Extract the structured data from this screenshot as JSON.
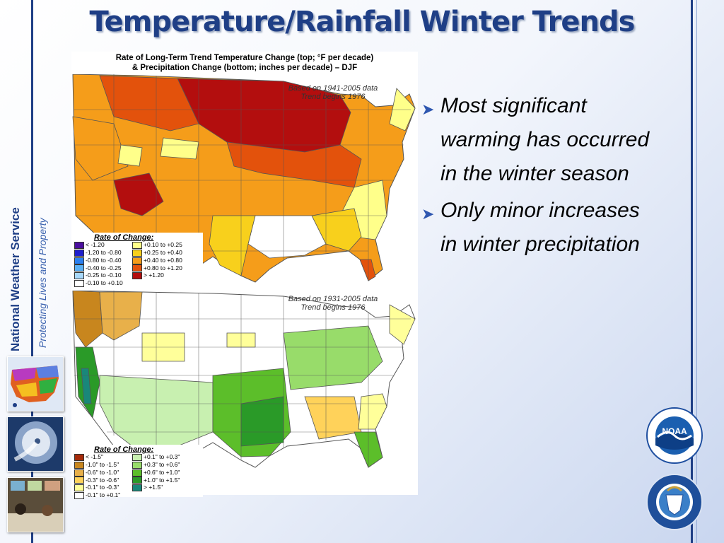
{
  "slide": {
    "title": "Temperature/Rainfall Winter Trends"
  },
  "sidebar": {
    "org": "National Weather Service",
    "tagline": "Protecting Lives and Property"
  },
  "figure": {
    "title_line1": "Rate of Long-Term Trend Temperature Change (top; °F per decade)",
    "title_line2": "&  Precipitation Change (bottom; inches per decade) – DJF",
    "top_note1": "Based on 1941-2005 data",
    "top_note2": "Trend begins 1976",
    "bottom_note1": "Based on 1931-2005 data",
    "bottom_note2": "Trend begins 1976",
    "temp_legend": {
      "title": "Rate of Change:",
      "items": [
        {
          "label": "< -1.20",
          "color": "#4b0e9e"
        },
        {
          "label": "-1.20 to -0.80",
          "color": "#1e1ecc"
        },
        {
          "label": "-0.80 to -0.40",
          "color": "#2a7ff0"
        },
        {
          "label": "-0.40 to -0.25",
          "color": "#5ab0f5"
        },
        {
          "label": "-0.25 to -0.10",
          "color": "#a8d8fa"
        },
        {
          "label": "-0.10 to +0.10",
          "color": "#ffffff"
        },
        {
          "label": "+0.10 to +0.25",
          "color": "#ffff8a"
        },
        {
          "label": "+0.25 to +0.40",
          "color": "#f8d01c"
        },
        {
          "label": "+0.40 to +0.80",
          "color": "#f59d1a"
        },
        {
          "label": "+0.80 to +1.20",
          "color": "#e3520c"
        },
        {
          "label": "> +1.20",
          "color": "#b30e0e"
        }
      ]
    },
    "precip_legend": {
      "title": "Rate of Change:",
      "items": [
        {
          "label": "< -1.5\"",
          "color": "#a52a0a"
        },
        {
          "label": "-1.0\" to -1.5\"",
          "color": "#c8861e"
        },
        {
          "label": "-0.6\" to -1.0\"",
          "color": "#e8b04a"
        },
        {
          "label": "-0.3\" to -0.6\"",
          "color": "#ffd25a"
        },
        {
          "label": "-0.1\" to -0.3\"",
          "color": "#ffff9a"
        },
        {
          "label": "-0.1\" to +0.1\"",
          "color": "#ffffff"
        },
        {
          "label": "+0.1\" to +0.3\"",
          "color": "#c8f0b0"
        },
        {
          "label": "+0.3\" to +0.6\"",
          "color": "#98dc6a"
        },
        {
          "label": "+0.6\" to +1.0\"",
          "color": "#5cbe2a"
        },
        {
          "label": "+1.0\" to +1.5\"",
          "color": "#2a9a28"
        },
        {
          "label": "> +1.5\"",
          "color": "#19877a"
        }
      ]
    }
  },
  "bullets": [
    {
      "text": "Most significant warming has occurred in the winter season"
    },
    {
      "text": "Only minor increases in winter precipitation"
    }
  ],
  "logos": {
    "noaa": "NOAA"
  }
}
